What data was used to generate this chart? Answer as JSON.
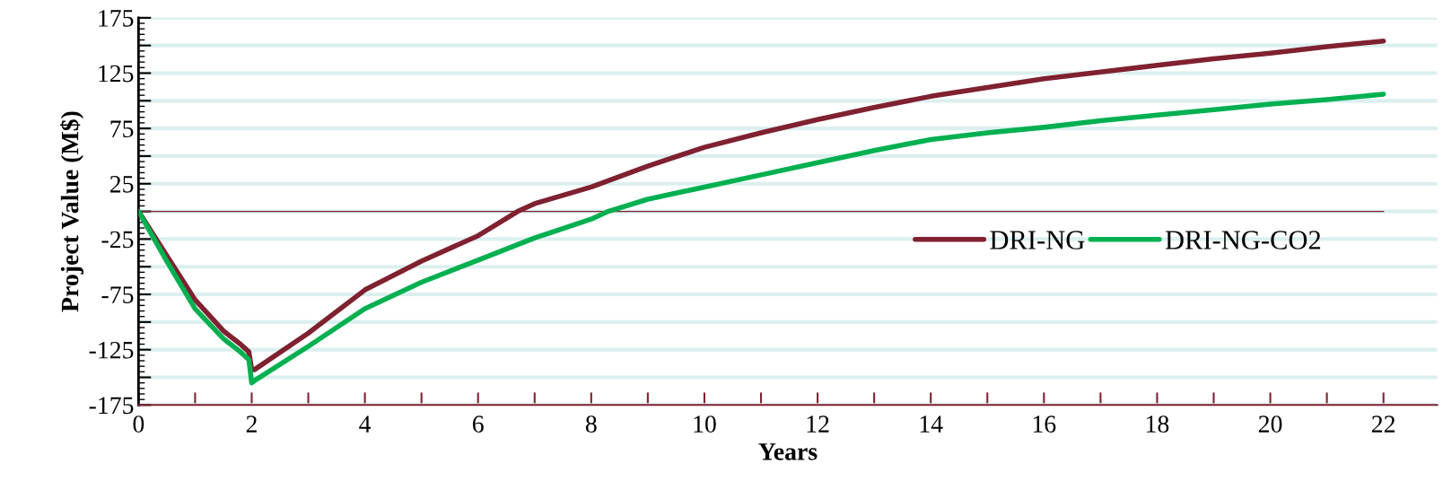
{
  "chart_data": {
    "type": "line",
    "xlabel": "Years",
    "ylabel": "Project Value (M$)",
    "xlim": [
      0,
      22.95
    ],
    "ylim": [
      -175,
      175
    ],
    "xticks": [
      0,
      {
        "value": 1,
        "label": null
      },
      2,
      {
        "value": 3,
        "label": null
      },
      4,
      {
        "value": 5,
        "label": null
      },
      6,
      {
        "value": 7,
        "label": null
      },
      8,
      {
        "value": 9,
        "label": null
      },
      10,
      {
        "value": 11,
        "label": null
      },
      12,
      {
        "value": 13,
        "label": null
      },
      14,
      {
        "value": 15,
        "label": null
      },
      16,
      {
        "value": 17,
        "label": null
      },
      18,
      {
        "value": 19,
        "label": null
      },
      20,
      {
        "value": 21,
        "label": null
      },
      22
    ],
    "yticks": [
      -175,
      {
        "value": -150,
        "label": null
      },
      -125,
      {
        "value": -100,
        "label": null
      },
      -75,
      {
        "value": -50,
        "label": null
      },
      -25,
      {
        "value": 0,
        "label": null
      },
      25,
      {
        "value": 50,
        "label": null
      },
      75,
      {
        "value": 100,
        "label": null
      },
      125,
      {
        "value": 150,
        "label": null
      },
      175
    ],
    "grid": "y",
    "legend": "center right",
    "line_style": "solid",
    "marker": "none",
    "ref_lines": [
      {
        "axis": "y",
        "value": 0,
        "color": "#7f2130"
      }
    ],
    "series": [
      {
        "name": "DRI-NG",
        "color": "#7f2130",
        "x": [
          0,
          0.5,
          1,
          1.5,
          1.8,
          1.95,
          2.0,
          2.05,
          3,
          4,
          5,
          6,
          6.7,
          7,
          8,
          9,
          10,
          11,
          12,
          13,
          14,
          15,
          16,
          17,
          18,
          19,
          20,
          21,
          22
        ],
        "values": [
          0,
          -40,
          -80,
          -108,
          -120,
          -127,
          -143,
          -143,
          -110,
          -71,
          -45,
          -22,
          0,
          7,
          22,
          41,
          58,
          71,
          83,
          94,
          104,
          112,
          120,
          126,
          132,
          138,
          143,
          149,
          154
        ]
      },
      {
        "name": "DRI-NG-CO2",
        "color": "#00b050",
        "x": [
          0,
          0.5,
          1,
          1.5,
          1.8,
          1.95,
          2.0,
          2.05,
          3,
          4,
          5,
          6,
          7,
          8,
          8.3,
          9,
          10,
          11,
          12,
          13,
          14,
          15,
          16,
          17,
          18,
          19,
          20,
          21,
          22
        ],
        "values": [
          0,
          -45,
          -88,
          -115,
          -127,
          -134,
          -155,
          -153,
          -122,
          -88,
          -64,
          -44,
          -24,
          -7,
          0,
          11,
          22,
          33,
          44,
          55,
          65,
          71,
          76,
          82,
          87,
          92,
          97,
          101,
          106
        ]
      }
    ]
  }
}
